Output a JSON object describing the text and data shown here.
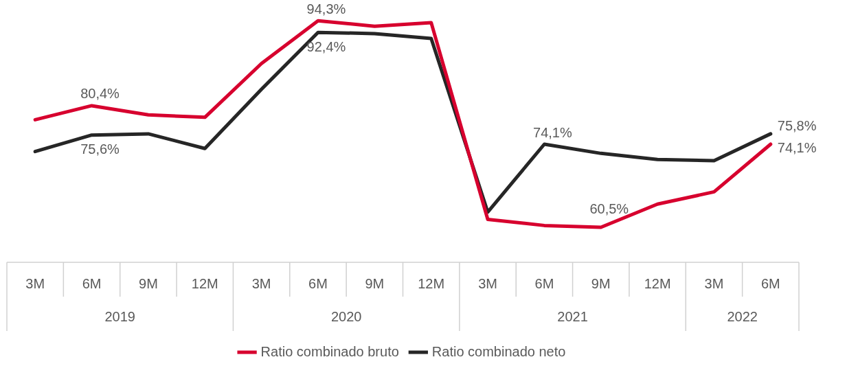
{
  "chart_data": {
    "type": "line",
    "categories": [
      "3M",
      "6M",
      "9M",
      "12M",
      "3M",
      "6M",
      "9M",
      "12M",
      "3M",
      "6M",
      "9M",
      "12M",
      "3M",
      "6M"
    ],
    "annotations": [
      "2019",
      "2020",
      "2021",
      "2022"
    ],
    "series": [
      {
        "name": "Ratio combinado bruto",
        "color": "#d7002e",
        "values": [
          78.1,
          80.4,
          78.9,
          78.5,
          87.3,
          94.3,
          93.4,
          94.0,
          61.8,
          60.8,
          60.5,
          64.3,
          66.3,
          74.1
        ],
        "value_labels": [
          null,
          "80,4%",
          null,
          null,
          null,
          "94,3%",
          null,
          null,
          null,
          null,
          "60,5%",
          null,
          null,
          "74,1%"
        ]
      },
      {
        "name": "Ratio combinado neto",
        "color": "#262626",
        "values": [
          72.9,
          75.6,
          75.8,
          73.4,
          83.1,
          92.4,
          92.2,
          91.4,
          63.0,
          74.1,
          72.6,
          71.6,
          71.4,
          75.8
        ],
        "value_labels": [
          null,
          "75,6%",
          null,
          null,
          null,
          "92,4%",
          null,
          null,
          null,
          "74,1%",
          null,
          null,
          null,
          "75,8%"
        ]
      }
    ],
    "legend": "bottom",
    "marker": "none",
    "line_style": "solid",
    "grid": false
  }
}
